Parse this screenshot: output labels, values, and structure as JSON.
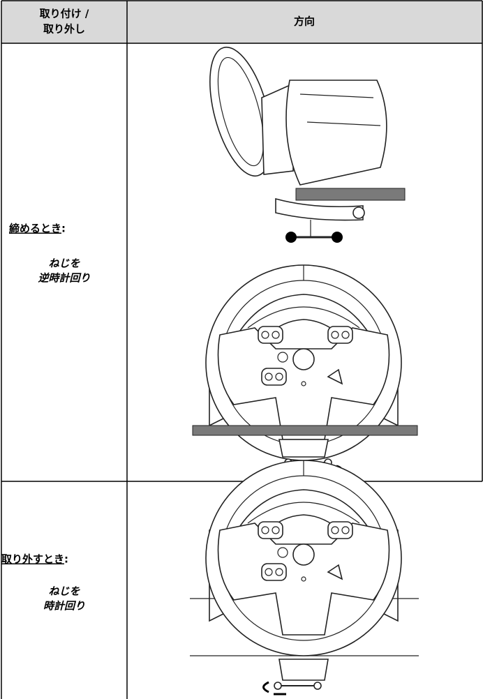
{
  "table": {
    "header": {
      "mount_lines": [
        "取り付け /",
        "取り外し"
      ],
      "direction": "方向"
    },
    "rows": [
      {
        "label": "締めるとき",
        "colon": ":",
        "instruction_lines": [
          "ねじを",
          "逆時計回り"
        ]
      },
      {
        "label": "取り外すとき",
        "colon": ":",
        "instruction_lines": [
          "ねじを",
          "時計回り"
        ]
      }
    ]
  }
}
